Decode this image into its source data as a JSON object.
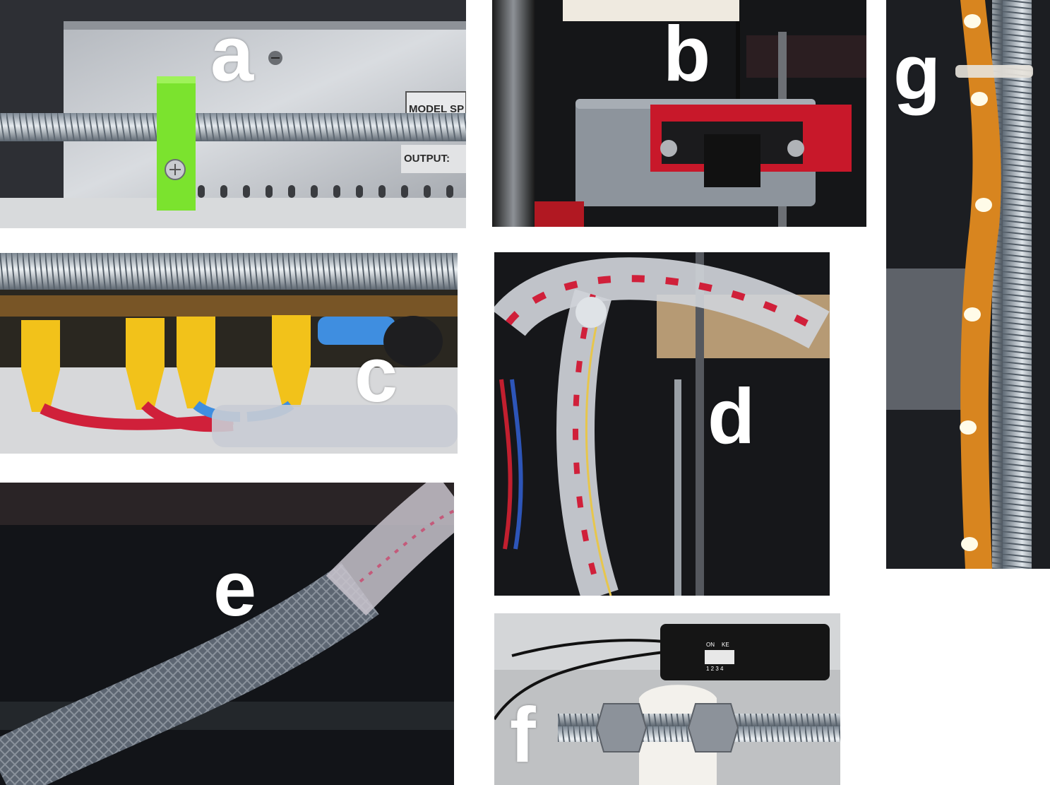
{
  "figure": {
    "panels": [
      {
        "id": "a",
        "label": "a"
      },
      {
        "id": "b",
        "label": "b"
      },
      {
        "id": "c",
        "label": "c"
      },
      {
        "id": "d",
        "label": "d"
      },
      {
        "id": "e",
        "label": "e"
      },
      {
        "id": "f",
        "label": "f"
      },
      {
        "id": "g",
        "label": "g"
      }
    ],
    "printed_text": {
      "psu_model": "MODEL SP",
      "psu_output": "OUTPUT:",
      "dip_on": "ON",
      "dip_ke": "KE",
      "dip_numbers": "1 2 3 4"
    }
  },
  "colors": {
    "label_text": "#ffffff",
    "bracket_green": "#7be32e",
    "sensor_board_red": "#c8182a",
    "terminal_yellow": "#f2c21a",
    "wire_red": "#d0203a",
    "wire_blue": "#3f8ee0",
    "braided_sleeve_gray": "#5d6672",
    "led_strip_amber": "#d8851f"
  }
}
